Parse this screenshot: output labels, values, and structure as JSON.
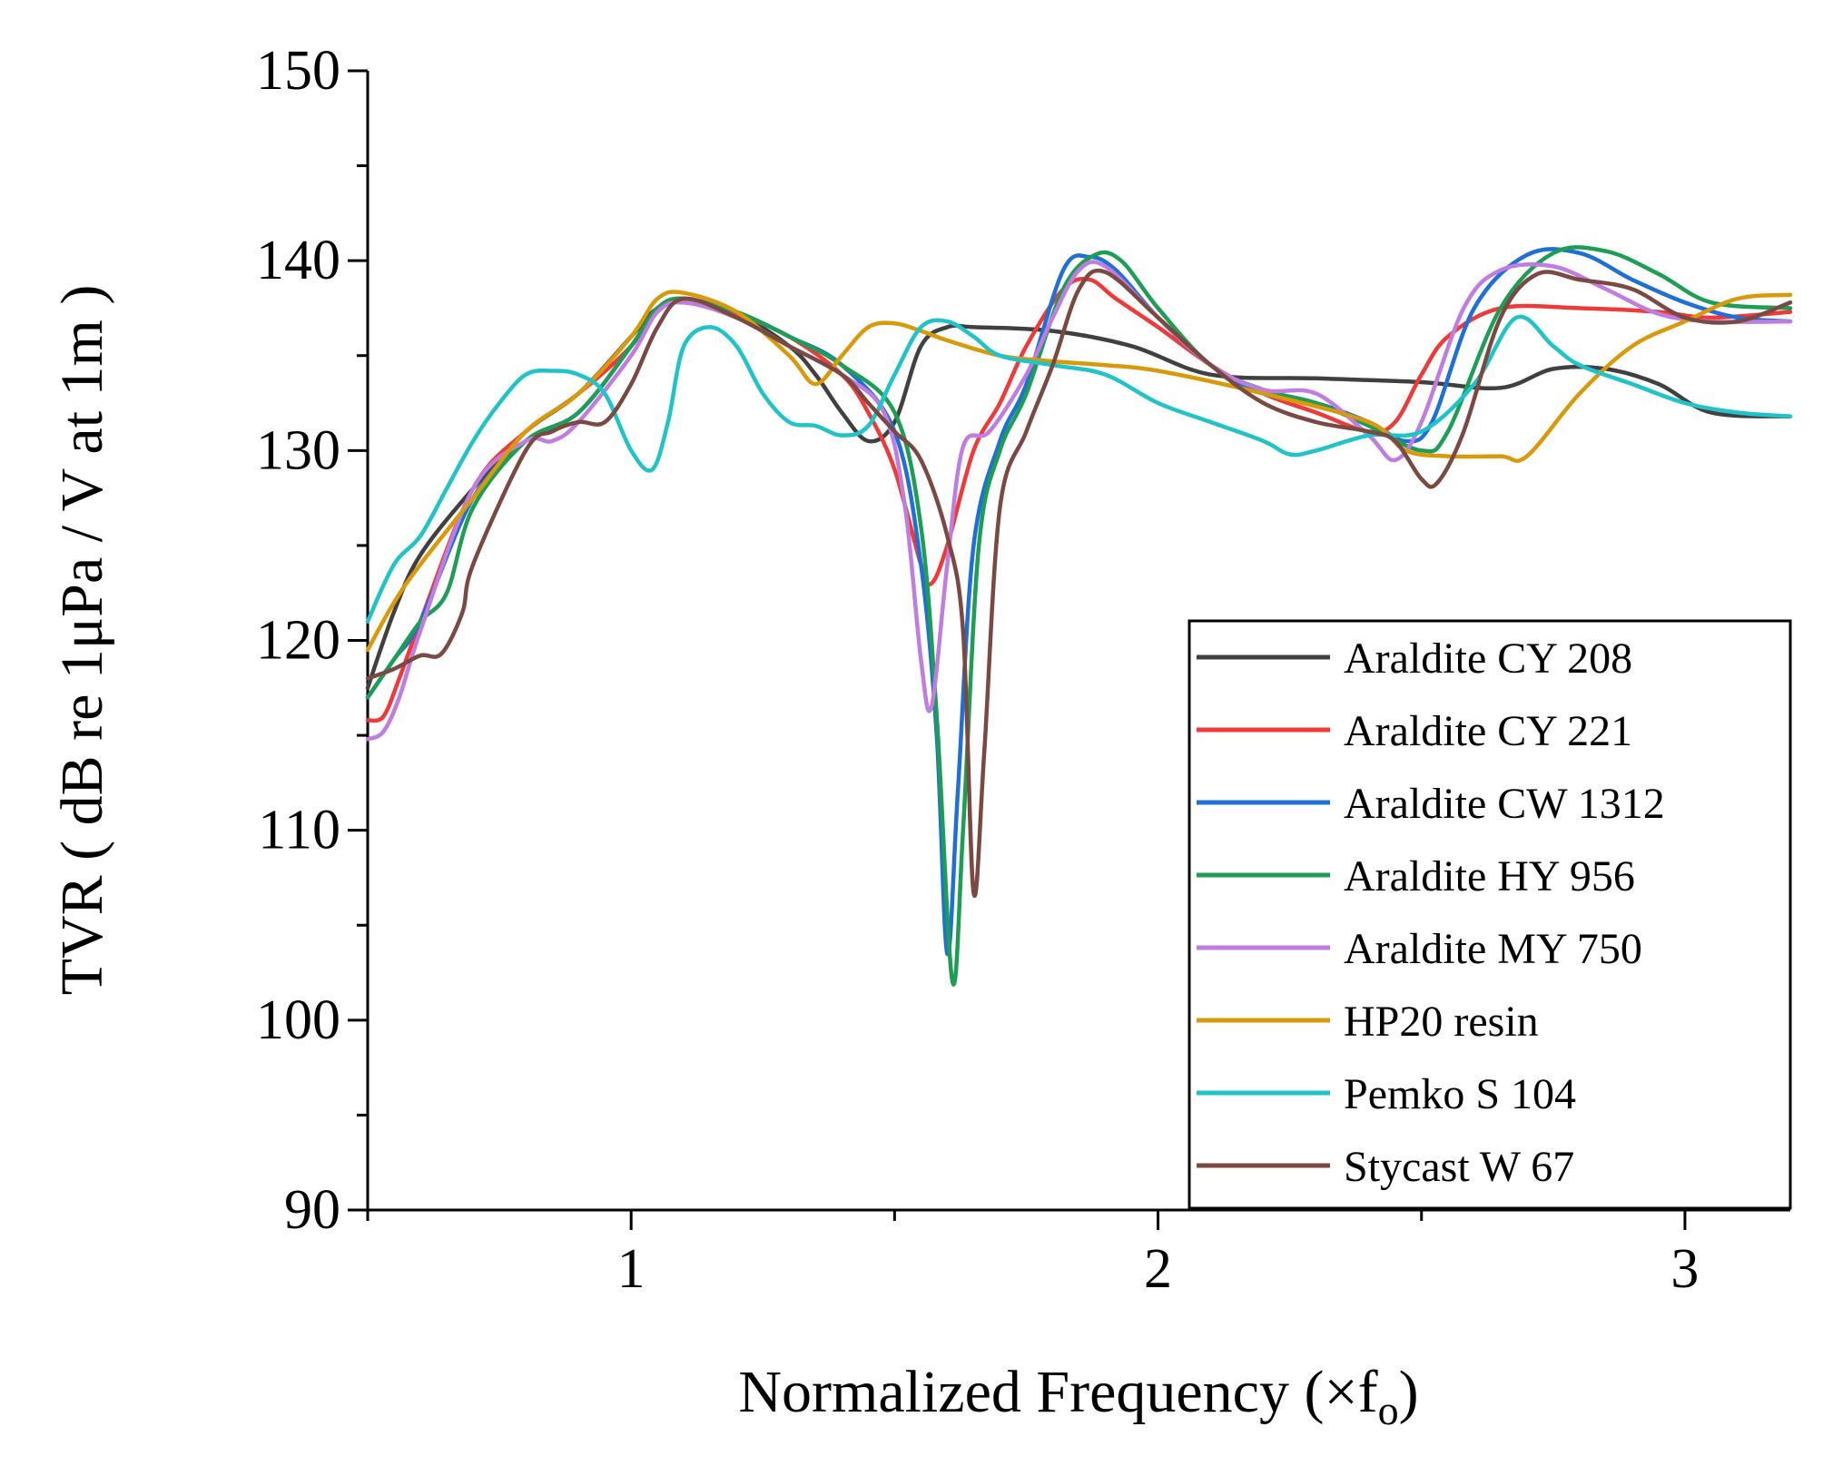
{
  "chart_data": {
    "type": "line",
    "title": "",
    "xlabel": "Normalized Frequency (×f",
    "xlabel_subscript": "o",
    "xlabel_close": ")",
    "ylabel": "TVR ( dB re 1μPa / V at 1m )",
    "xlim": [
      0.5,
      3.2
    ],
    "ylim": [
      90,
      150
    ],
    "xticks": [
      1,
      2,
      3
    ],
    "yticks": [
      90,
      100,
      110,
      120,
      130,
      140,
      150
    ],
    "xtick_labels": [
      "1",
      "2",
      "3"
    ],
    "ytick_labels": [
      "90",
      "100",
      "110",
      "120",
      "130",
      "140",
      "150"
    ],
    "grid": false,
    "legend_position": "bottom-right",
    "series": [
      {
        "name": "Araldite CY 208",
        "color": "#404040",
        "x": [
          0.5,
          0.55,
          0.6,
          0.7,
          0.8,
          0.9,
          1.0,
          1.05,
          1.1,
          1.2,
          1.3,
          1.35,
          1.4,
          1.45,
          1.5,
          1.55,
          1.6,
          1.65,
          1.8,
          1.95,
          2.1,
          2.3,
          2.5,
          2.65,
          2.75,
          2.85,
          2.95,
          3.05,
          3.2
        ],
        "y": [
          117.5,
          121.5,
          124.5,
          128,
          131,
          133,
          136,
          137.5,
          137.8,
          137.2,
          135.5,
          134,
          132,
          130.5,
          131.5,
          135.5,
          136.5,
          136.5,
          136.3,
          135.5,
          134,
          133.8,
          133.6,
          133.3,
          134.3,
          134.3,
          133.5,
          132,
          131.8
        ]
      },
      {
        "name": "Araldite CY 221",
        "color": "#ef3a3a",
        "x": [
          0.5,
          0.53,
          0.56,
          0.6,
          0.7,
          0.8,
          0.9,
          1.0,
          1.05,
          1.1,
          1.2,
          1.3,
          1.4,
          1.45,
          1.5,
          1.55,
          1.57,
          1.6,
          1.65,
          1.7,
          1.75,
          1.82,
          1.87,
          1.92,
          2.0,
          2.1,
          2.2,
          2.3,
          2.4,
          2.45,
          2.5,
          2.55,
          2.65,
          2.8,
          2.95,
          3.05,
          3.2
        ],
        "y": [
          115.8,
          116,
          118,
          121,
          128,
          131,
          133,
          135.5,
          137.5,
          138,
          137.2,
          136,
          134,
          132,
          129,
          124,
          123,
          125,
          130,
          132.5,
          135.5,
          138.5,
          139,
          138,
          136.5,
          134.5,
          133,
          132,
          131,
          131.5,
          134,
          136,
          137.5,
          137.5,
          137.3,
          137,
          137.3
        ]
      },
      {
        "name": "Araldite CW 1312",
        "color": "#1f6fd6",
        "x": [
          0.5,
          0.55,
          0.6,
          0.7,
          0.8,
          0.9,
          1.0,
          1.05,
          1.1,
          1.2,
          1.3,
          1.4,
          1.5,
          1.55,
          1.58,
          1.6,
          1.62,
          1.65,
          1.7,
          1.75,
          1.82,
          1.87,
          1.92,
          2.0,
          2.1,
          2.2,
          2.3,
          2.4,
          2.47,
          2.52,
          2.6,
          2.7,
          2.8,
          2.9,
          3.0,
          3.1,
          3.2
        ],
        "y": [
          117,
          119,
          121,
          127.5,
          130.5,
          132,
          135.5,
          137.5,
          138,
          137.3,
          136,
          134.5,
          131,
          124,
          115,
          103.5,
          112,
          125,
          130.5,
          133.5,
          139.5,
          140.2,
          139.5,
          137,
          134.5,
          133,
          132.5,
          131.5,
          130.5,
          131.5,
          137.5,
          140.3,
          140.4,
          139,
          137.8,
          137,
          136.8
        ]
      },
      {
        "name": "Araldite HY 956",
        "color": "#1e9e55",
        "x": [
          0.5,
          0.55,
          0.6,
          0.65,
          0.7,
          0.8,
          0.9,
          1.0,
          1.05,
          1.1,
          1.2,
          1.3,
          1.4,
          1.5,
          1.55,
          1.58,
          1.61,
          1.63,
          1.66,
          1.7,
          1.75,
          1.82,
          1.88,
          1.93,
          2.0,
          2.1,
          2.2,
          2.3,
          2.4,
          2.5,
          2.55,
          2.65,
          2.75,
          2.85,
          2.95,
          3.05,
          3.2
        ],
        "y": [
          117,
          119,
          121,
          122.5,
          127,
          130.5,
          132,
          135.5,
          137.5,
          138,
          137.3,
          136,
          134.5,
          132,
          126,
          116,
          102,
          110,
          125,
          130,
          133,
          138.5,
          140.3,
          140,
          137.5,
          134.5,
          133.2,
          132.5,
          131.3,
          130,
          131,
          137.5,
          140.4,
          140.5,
          139.3,
          137.8,
          137.5
        ]
      },
      {
        "name": "Araldite MY 750",
        "color": "#c07de0",
        "x": [
          0.5,
          0.53,
          0.56,
          0.6,
          0.7,
          0.8,
          0.85,
          0.9,
          1.0,
          1.05,
          1.1,
          1.2,
          1.3,
          1.4,
          1.48,
          1.52,
          1.55,
          1.57,
          1.6,
          1.63,
          1.68,
          1.75,
          1.8,
          1.85,
          1.9,
          2.0,
          2.1,
          2.2,
          2.3,
          2.4,
          2.45,
          2.5,
          2.58,
          2.65,
          2.75,
          2.85,
          2.95,
          3.05,
          3.2
        ],
        "y": [
          114.8,
          115.2,
          117,
          120.5,
          128,
          130.5,
          130.5,
          131.5,
          135,
          137.3,
          137.8,
          137,
          135.5,
          134,
          132,
          127,
          119,
          116.5,
          124,
          130.2,
          131,
          134,
          137,
          139.5,
          139.7,
          137,
          134.5,
          133.2,
          133,
          130.8,
          129.5,
          131.5,
          137.5,
          139.5,
          139.7,
          138.5,
          137.2,
          136.8,
          136.8
        ]
      },
      {
        "name": "HP20 resin",
        "color": "#d99a0a",
        "x": [
          0.5,
          0.55,
          0.6,
          0.7,
          0.8,
          0.9,
          1.0,
          1.05,
          1.1,
          1.2,
          1.3,
          1.35,
          1.4,
          1.45,
          1.5,
          1.55,
          1.6,
          1.7,
          1.8,
          1.9,
          2.0,
          2.2,
          2.4,
          2.47,
          2.55,
          2.65,
          2.7,
          2.8,
          2.9,
          3.0,
          3.1,
          3.2
        ],
        "y": [
          119.5,
          122,
          124,
          127.5,
          131,
          133,
          136,
          138,
          138.3,
          137.3,
          135,
          133.5,
          135,
          136.5,
          136.7,
          136.3,
          135.8,
          135,
          134.7,
          134.5,
          134.2,
          133,
          131.5,
          130,
          129.7,
          129.7,
          129.7,
          133,
          135.5,
          136.8,
          138,
          138.2
        ]
      },
      {
        "name": "Pemko S 104",
        "color": "#1fc3c8",
        "x": [
          0.5,
          0.55,
          0.6,
          0.65,
          0.7,
          0.75,
          0.8,
          0.85,
          0.9,
          0.95,
          1.0,
          1.04,
          1.07,
          1.1,
          1.15,
          1.2,
          1.25,
          1.3,
          1.35,
          1.4,
          1.45,
          1.5,
          1.55,
          1.6,
          1.65,
          1.7,
          1.8,
          1.9,
          2.0,
          2.1,
          2.2,
          2.25,
          2.3,
          2.4,
          2.5,
          2.6,
          2.68,
          2.75,
          2.8,
          2.9,
          3.0,
          3.1,
          3.2
        ],
        "y": [
          121,
          124,
          125.5,
          128,
          130.5,
          132.5,
          134,
          134.2,
          134,
          133,
          130,
          129,
          131.5,
          135.5,
          136.5,
          135.5,
          133,
          131.5,
          131.3,
          130.8,
          131.3,
          134,
          136.5,
          136.8,
          136,
          135,
          134.5,
          134,
          132.5,
          131.5,
          130.5,
          129.8,
          130,
          130.8,
          131,
          133.5,
          137,
          135.5,
          134.5,
          133.5,
          132.5,
          132,
          131.8
        ]
      },
      {
        "name": "Stycast W 67",
        "color": "#7a4a42",
        "x": [
          0.5,
          0.55,
          0.6,
          0.64,
          0.68,
          0.7,
          0.8,
          0.85,
          0.9,
          0.95,
          1.0,
          1.05,
          1.1,
          1.2,
          1.3,
          1.4,
          1.45,
          1.5,
          1.55,
          1.6,
          1.63,
          1.65,
          1.67,
          1.7,
          1.75,
          1.8,
          1.85,
          1.9,
          2.0,
          2.1,
          2.2,
          2.3,
          2.4,
          2.45,
          2.5,
          2.53,
          2.58,
          2.65,
          2.72,
          2.8,
          2.9,
          3.0,
          3.1,
          3.2
        ],
        "y": [
          118,
          118.5,
          119.2,
          119.3,
          121.5,
          124,
          130,
          131,
          131.5,
          131.5,
          133.5,
          136.5,
          138,
          137,
          135.5,
          134,
          132.5,
          131,
          129.5,
          125.5,
          120.5,
          106.7,
          114,
          127,
          131,
          134.5,
          138.5,
          139.4,
          137,
          134.5,
          132.5,
          131.5,
          131,
          130.5,
          128.5,
          128.3,
          131,
          137,
          139.3,
          139,
          138.5,
          137,
          136.8,
          137.8
        ]
      }
    ]
  }
}
